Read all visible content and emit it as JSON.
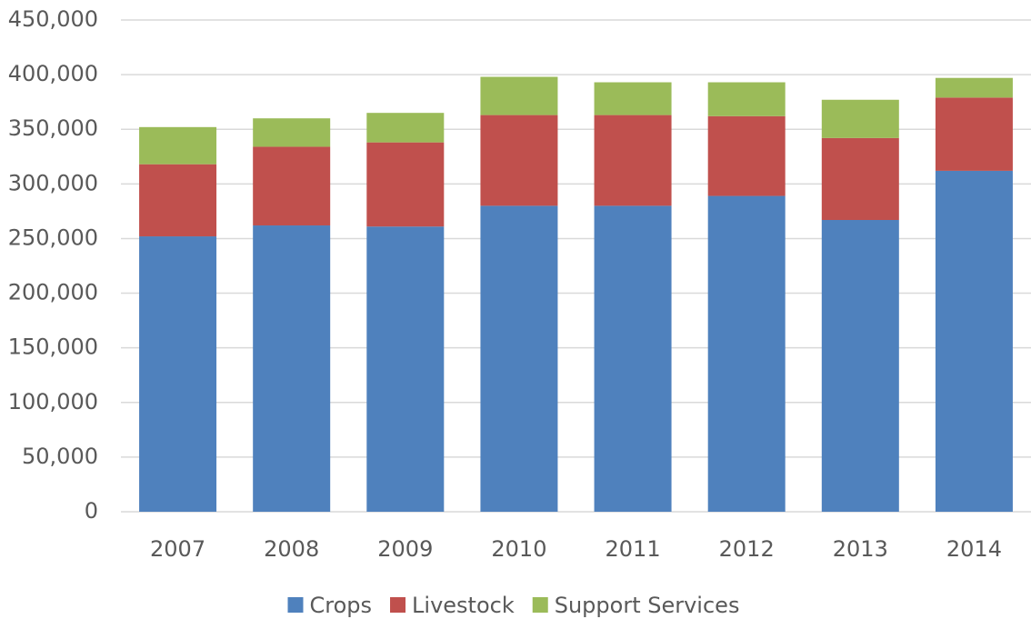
{
  "chart_data": {
    "type": "stacked_bar",
    "categories": [
      "2007",
      "2008",
      "2009",
      "2010",
      "2011",
      "2012",
      "2013",
      "2014"
    ],
    "series": [
      {
        "name": "Crops",
        "color": "#4f81bd",
        "values": [
          252000,
          262000,
          261000,
          280000,
          280000,
          289000,
          267000,
          312000
        ]
      },
      {
        "name": "Livestock",
        "color": "#c0504d",
        "values": [
          66000,
          72000,
          77000,
          83000,
          83000,
          73000,
          75000,
          67000
        ]
      },
      {
        "name": "Support Services",
        "color": "#9bbb59",
        "values": [
          34000,
          26000,
          27000,
          35000,
          30000,
          31000,
          35000,
          18000
        ]
      }
    ],
    "ylim": [
      0,
      450000
    ],
    "yticks": [
      0,
      {
        "value": 50000,
        "label": "50,000"
      },
      {
        "value": 100000,
        "label": "100,000"
      },
      {
        "value": 150000,
        "label": "150,000"
      },
      {
        "value": 200000,
        "label": "200,000"
      },
      {
        "value": 250000,
        "label": "250,000"
      },
      {
        "value": 300000,
        "label": "300,000"
      },
      {
        "value": 350000,
        "label": "350,000"
      },
      {
        "value": 400000,
        "label": "400,000"
      },
      {
        "value": 450000,
        "label": "450,000"
      }
    ],
    "grid": true,
    "legend": "bottom"
  }
}
